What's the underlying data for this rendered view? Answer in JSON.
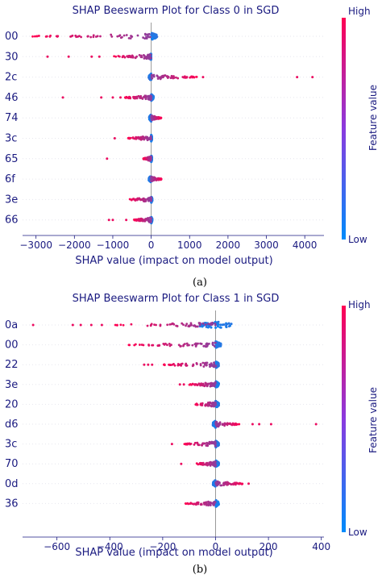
{
  "colors": {
    "low": "#008bfb",
    "high": "#ff0052",
    "text": "#1a1a80",
    "zero_line": "#999999"
  },
  "chart_data": [
    {
      "type": "scatter",
      "subtype": "shap-beeswarm",
      "caption": "(a)",
      "title": "SHAP Beeswarm Plot for Class 0 in SGD",
      "xlabel": "SHAP value (impact on model output)",
      "colorbar": {
        "label": "Feature value",
        "high": "High",
        "low": "Low"
      },
      "xlim": [
        -3350,
        4500
      ],
      "xticks": [
        -3000,
        -2000,
        -1000,
        0,
        1000,
        2000,
        3000,
        4000
      ],
      "xtick_labels": [
        "−3000",
        "−2000",
        "−1000",
        "0",
        "1000",
        "2000",
        "3000",
        "4000"
      ],
      "features": [
        {
          "name": "00",
          "dense": [
            0,
            150
          ],
          "tail": [
            -3100,
            0
          ],
          "outliers": []
        },
        {
          "name": "30",
          "dense": [
            -40,
            0
          ],
          "tail": [
            -1000,
            0
          ],
          "outliers": [
            -2700,
            -2150,
            -1550,
            -1350
          ]
        },
        {
          "name": "2c",
          "dense": [
            -60,
            0
          ],
          "tail": [
            0,
            1200
          ],
          "outliers": [
            1350,
            3800,
            4200
          ]
        },
        {
          "name": "46",
          "dense": [
            0,
            60
          ],
          "tail": [
            -700,
            0
          ],
          "outliers": [
            -2300,
            -1300,
            -1000,
            -800
          ]
        },
        {
          "name": "74",
          "dense": [
            -50,
            0
          ],
          "tail": [
            0,
            260
          ],
          "outliers": []
        },
        {
          "name": "3c",
          "dense": [
            0,
            20
          ],
          "tail": [
            -600,
            0
          ],
          "outliers": [
            -950
          ]
        },
        {
          "name": "65",
          "dense": [
            0,
            20
          ],
          "tail": [
            -200,
            0
          ],
          "outliers": [
            -1150
          ]
        },
        {
          "name": "6f",
          "dense": [
            -60,
            0
          ],
          "tail": [
            0,
            280
          ],
          "outliers": []
        },
        {
          "name": "3e",
          "dense": [
            0,
            25
          ],
          "tail": [
            -600,
            0
          ],
          "outliers": []
        },
        {
          "name": "66",
          "dense": [
            0,
            25
          ],
          "tail": [
            -450,
            0
          ],
          "outliers": [
            -1100,
            -1000,
            -650
          ]
        }
      ]
    },
    {
      "type": "scatter",
      "subtype": "shap-beeswarm",
      "caption": "(b)",
      "title": "SHAP Beeswarm Plot for Class 1 in SGD",
      "xlabel": "SHAP value (impact on model output)",
      "colorbar": {
        "label": "Feature value",
        "high": "High",
        "low": "Low"
      },
      "xlim": [
        -730,
        410
      ],
      "xticks": [
        -600,
        -400,
        -200,
        0,
        200,
        400
      ],
      "xtick_labels": [
        "−600",
        "−400",
        "−200",
        "0",
        "200",
        "400"
      ],
      "features": [
        {
          "name": "0a",
          "dense": [
            -60,
            60
          ],
          "tail": [
            -380,
            0
          ],
          "outliers": [
            -690,
            -540,
            -510,
            -470,
            -430
          ]
        },
        {
          "name": "00",
          "dense": [
            0,
            20
          ],
          "tail": [
            -330,
            0
          ],
          "outliers": []
        },
        {
          "name": "22",
          "dense": [
            0,
            12
          ],
          "tail": [
            -200,
            0
          ],
          "outliers": [
            -270,
            -255,
            -240
          ]
        },
        {
          "name": "3e",
          "dense": [
            0,
            12
          ],
          "tail": [
            -100,
            0
          ],
          "outliers": [
            -135,
            -120
          ]
        },
        {
          "name": "20",
          "dense": [
            0,
            12
          ],
          "tail": [
            -80,
            0
          ],
          "outliers": []
        },
        {
          "name": "d6",
          "dense": [
            -10,
            0
          ],
          "tail": [
            0,
            90
          ],
          "outliers": [
            140,
            165,
            210,
            380
          ]
        },
        {
          "name": "3c",
          "dense": [
            0,
            12
          ],
          "tail": [
            -120,
            0
          ],
          "outliers": [
            -165
          ]
        },
        {
          "name": "70",
          "dense": [
            0,
            12
          ],
          "tail": [
            -75,
            0
          ],
          "outliers": [
            -130
          ]
        },
        {
          "name": "0d",
          "dense": [
            -10,
            0
          ],
          "tail": [
            0,
            110
          ],
          "outliers": [
            125
          ]
        },
        {
          "name": "36",
          "dense": [
            0,
            12
          ],
          "tail": [
            -115,
            0
          ],
          "outliers": []
        }
      ]
    }
  ]
}
